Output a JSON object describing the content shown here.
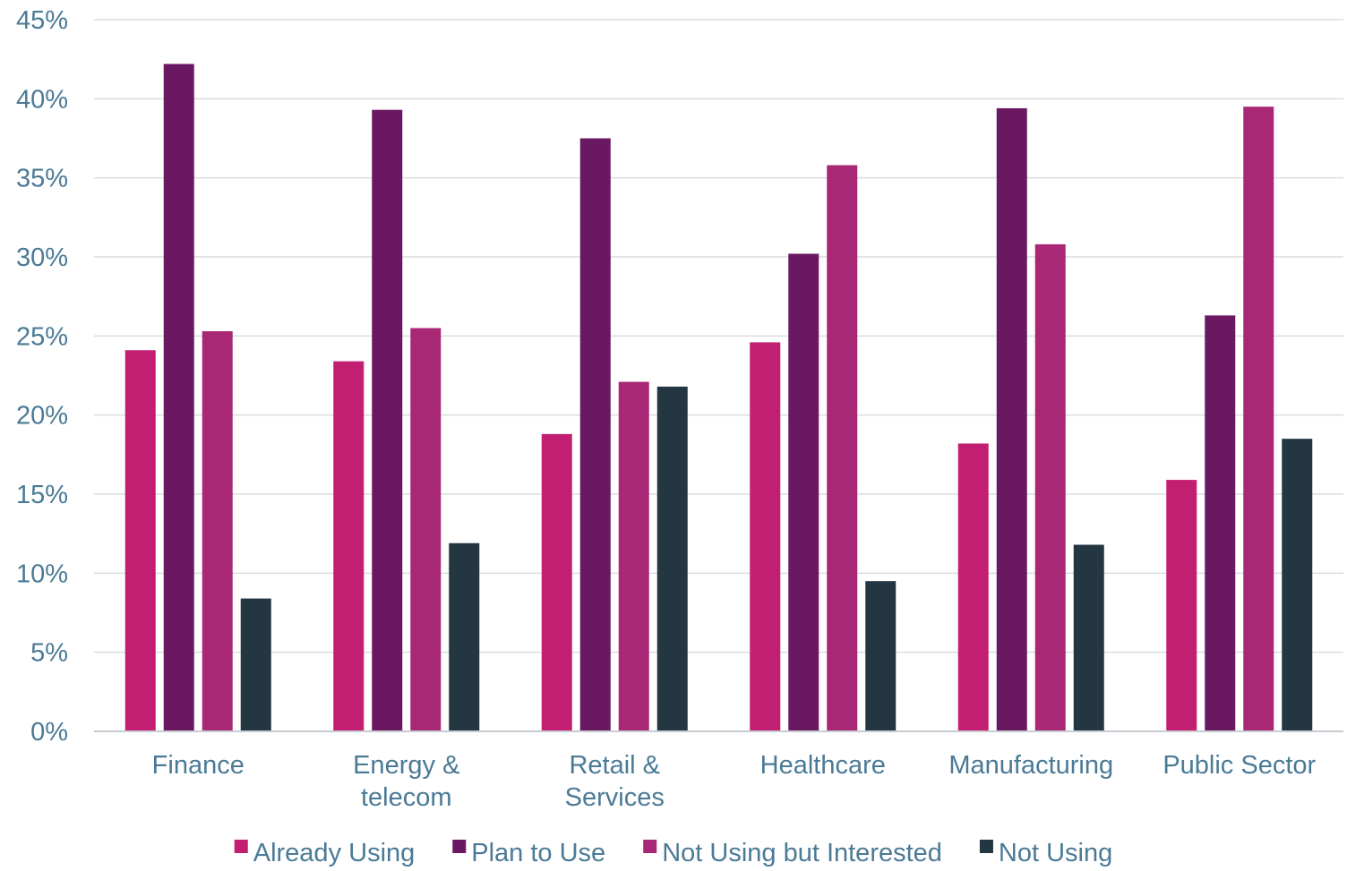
{
  "chart_data": {
    "type": "bar",
    "title": "",
    "xlabel": "",
    "ylabel": "",
    "categories": [
      [
        "Finance"
      ],
      [
        "Energy &",
        "telecom"
      ],
      [
        "Retail &",
        "Services"
      ],
      [
        "Healthcare"
      ],
      [
        "Manufacturing"
      ],
      [
        "Public Sector"
      ]
    ],
    "series": [
      {
        "name": "Already Using",
        "color": "#c21e72",
        "values": [
          24.1,
          23.4,
          18.8,
          24.6,
          18.2,
          15.9
        ]
      },
      {
        "name": "Plan to Use",
        "color": "#6a1862",
        "values": [
          42.2,
          39.3,
          37.5,
          30.2,
          39.4,
          26.3
        ]
      },
      {
        "name": "Not Using but Interested",
        "color": "#a82875",
        "values": [
          25.3,
          25.5,
          22.1,
          35.8,
          30.8,
          39.5
        ]
      },
      {
        "name": "Not Using",
        "color": "#243642",
        "values": [
          8.4,
          11.9,
          21.8,
          9.5,
          11.8,
          18.5
        ]
      }
    ],
    "ylim": [
      0,
      45
    ],
    "yticks": [
      0,
      5,
      10,
      15,
      20,
      25,
      30,
      35,
      40,
      45
    ],
    "ytick_format": "{v}%",
    "grid": true,
    "legend": "bottom",
    "colors": {
      "tick_text": "#4b7a96",
      "grid": "#d9dde2",
      "axis": "#c7ccd2"
    }
  }
}
